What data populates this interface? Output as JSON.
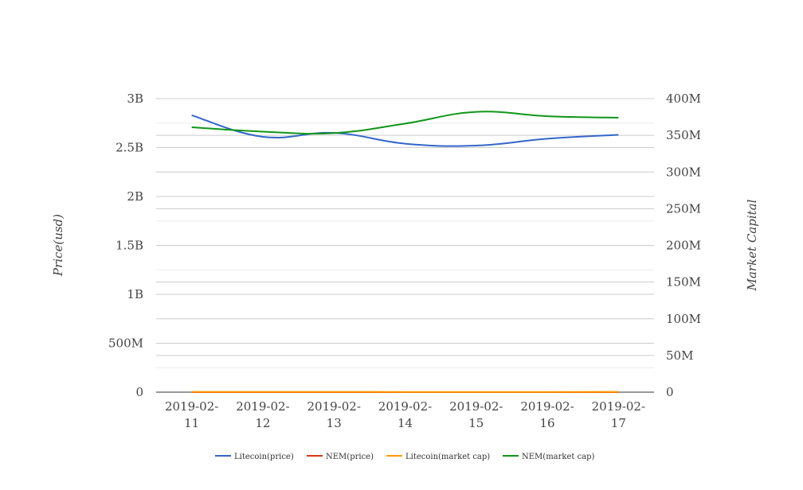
{
  "chart_data": {
    "type": "line",
    "x": [
      "2019-02-11",
      "2019-02-12",
      "2019-02-13",
      "2019-02-14",
      "2019-02-15",
      "2019-02-16",
      "2019-02-17"
    ],
    "x_tick_labels": [
      [
        "2019-02-",
        "11"
      ],
      [
        "2019-02-",
        "12"
      ],
      [
        "2019-02-",
        "13"
      ],
      [
        "2019-02-",
        "14"
      ],
      [
        "2019-02-",
        "15"
      ],
      [
        "2019-02-",
        "16"
      ],
      [
        "2019-02-",
        "17"
      ]
    ],
    "y_left": {
      "label": "Price(usd)",
      "range": [
        0,
        3000000000
      ],
      "ticks": [
        0,
        500000000,
        1000000000,
        1500000000,
        2000000000,
        2500000000,
        3000000000
      ],
      "tick_labels": [
        "0",
        "500M",
        "1B",
        "1.5B",
        "2B",
        "2.5B",
        "3B"
      ]
    },
    "y_right": {
      "label": "Market Capital",
      "range": [
        0,
        400000000
      ],
      "ticks": [
        0,
        50000000,
        100000000,
        150000000,
        200000000,
        250000000,
        300000000,
        350000000,
        400000000
      ],
      "tick_labels": [
        "0",
        "50M",
        "100M",
        "150M",
        "200M",
        "250M",
        "300M",
        "350M",
        "400M"
      ]
    },
    "series": [
      {
        "name": "Litecoin(price)",
        "axis": "left",
        "color": "#3366cc",
        "values": [
          2830000000,
          2610000000,
          2650000000,
          2540000000,
          2520000000,
          2590000000,
          2630000000
        ]
      },
      {
        "name": "NEM(price)",
        "axis": "left",
        "color": "#dc3912",
        "values": [
          0.06,
          0.06,
          0.06,
          0.06,
          0.06,
          0.06,
          0.06
        ]
      },
      {
        "name": "Litecoin(market cap)",
        "axis": "left",
        "color": "#ff9900",
        "values": [
          2700000,
          2600000,
          2650000,
          2500000,
          2500000,
          2550000,
          2600000
        ]
      },
      {
        "name": "NEM(market cap)",
        "axis": "right",
        "color": "#109618",
        "values": [
          361000000,
          355000000,
          353000000,
          366000000,
          382000000,
          376000000,
          374000000
        ]
      }
    ],
    "grid": true,
    "legend_position": "bottom"
  }
}
